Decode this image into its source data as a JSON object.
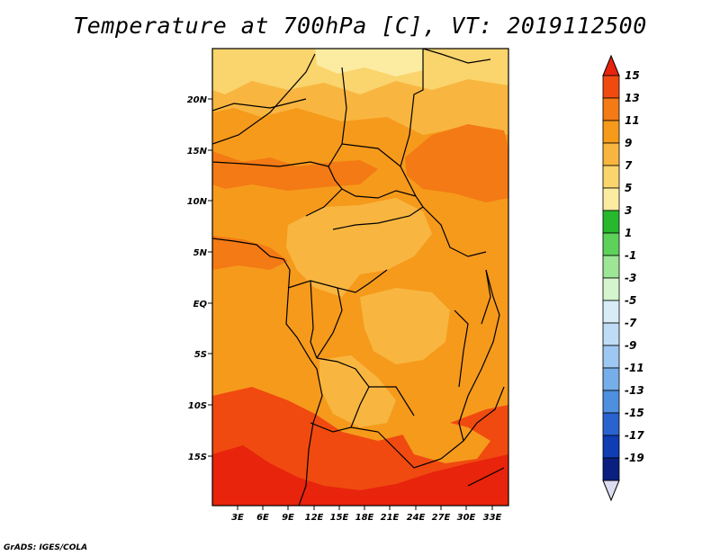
{
  "title": "Temperature at 700hPa [C], VT: 2019112500",
  "credit": "GrADS: IGES/COLA",
  "lat_labels": [
    "20N",
    "15N",
    "10N",
    "5N",
    "EQ",
    "5S",
    "10S",
    "15S"
  ],
  "lon_labels": [
    "3E",
    "6E",
    "9E",
    "12E",
    "15E",
    "18E",
    "21E",
    "24E",
    "27E",
    "30E",
    "33E"
  ],
  "colorbar": {
    "levels": [
      "15",
      "13",
      "11",
      "9",
      "7",
      "5",
      "3",
      "1",
      "-1",
      "-3",
      "-5",
      "-7",
      "-9",
      "-11",
      "-13",
      "-15",
      "-17",
      "-19"
    ],
    "colors": [
      "#e8240c",
      "#f04a10",
      "#f37a14",
      "#f69a1c",
      "#f8b640",
      "#fad46c",
      "#fbeca2",
      "#27b82e",
      "#5ed15a",
      "#9ce696",
      "#d4f5cd",
      "#d8ecf8",
      "#bfdcf6",
      "#9ec8f2",
      "#76aee9",
      "#4e8fe0",
      "#2a63cf",
      "#103cb4",
      "#0a1f80",
      "#dcdcf2"
    ]
  },
  "field_colors": {
    "c5": "#fbeca2",
    "c7": "#fad46c",
    "c9": "#f8b640",
    "c11": "#f69a1c",
    "c13": "#f37a14",
    "c15": "#f04a10",
    "c17": "#e8240c"
  }
}
